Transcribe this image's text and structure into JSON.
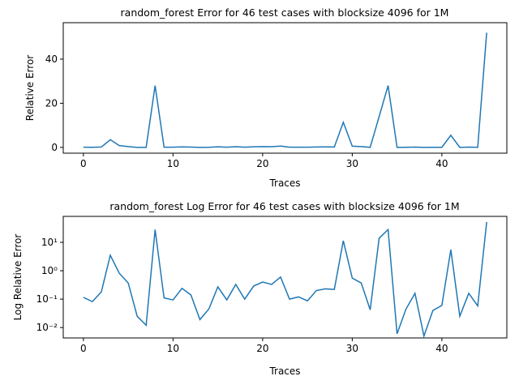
{
  "chart_data": [
    {
      "type": "line",
      "title": "random_forest Error for 46 test cases with blocksize 4096 for 1M",
      "x_label": "Traces",
      "y_label": "Relative Error",
      "x": [
        0,
        1,
        2,
        3,
        4,
        5,
        6,
        7,
        8,
        9,
        10,
        11,
        12,
        13,
        14,
        15,
        16,
        17,
        18,
        19,
        20,
        21,
        22,
        23,
        24,
        25,
        26,
        27,
        28,
        29,
        30,
        31,
        32,
        33,
        34,
        35,
        36,
        37,
        38,
        39,
        40,
        41,
        42,
        43,
        44,
        45
      ],
      "series": [
        {
          "color": "#1f77b4",
          "values": [
            0.115,
            0.082,
            0.18,
            3.5,
            0.82,
            0.37,
            0.025,
            0.012,
            28,
            0.11,
            0.094,
            0.24,
            0.14,
            0.019,
            0.045,
            0.27,
            0.094,
            0.33,
            0.1,
            0.29,
            0.4,
            0.33,
            0.6,
            0.1,
            0.12,
            0.087,
            0.2,
            0.23,
            0.22,
            11.4,
            0.55,
            0.37,
            0.042,
            14,
            28,
            0.006,
            0.045,
            0.16,
            0.005,
            0.04,
            0.06,
            5.5,
            0.025,
            0.16,
            0.058,
            52
          ]
        }
      ],
      "xlim": [
        -2.25,
        47.25
      ],
      "xticks": [
        0,
        10,
        20,
        30,
        40
      ],
      "ylim": [
        -2.6,
        56.5
      ],
      "yticks": [
        0,
        20,
        40
      ],
      "log_y": false
    },
    {
      "type": "line",
      "title": "random_forest Log Error for 46 test cases with blocksize 4096 for 1M",
      "x_label": "Traces",
      "y_label": "Log Relative Error",
      "x": [
        0,
        1,
        2,
        3,
        4,
        5,
        6,
        7,
        8,
        9,
        10,
        11,
        12,
        13,
        14,
        15,
        16,
        17,
        18,
        19,
        20,
        21,
        22,
        23,
        24,
        25,
        26,
        27,
        28,
        29,
        30,
        31,
        32,
        33,
        34,
        35,
        36,
        37,
        38,
        39,
        40,
        41,
        42,
        43,
        44,
        45
      ],
      "series": [
        {
          "color": "#1f77b4",
          "values": [
            0.115,
            0.082,
            0.18,
            3.5,
            0.82,
            0.37,
            0.025,
            0.012,
            28,
            0.11,
            0.094,
            0.24,
            0.14,
            0.019,
            0.045,
            0.27,
            0.094,
            0.33,
            0.1,
            0.29,
            0.4,
            0.33,
            0.6,
            0.1,
            0.12,
            0.087,
            0.2,
            0.23,
            0.22,
            11.4,
            0.55,
            0.37,
            0.042,
            14,
            28,
            0.006,
            0.045,
            0.16,
            0.005,
            0.04,
            0.06,
            5.5,
            0.025,
            0.16,
            0.058,
            52
          ]
        }
      ],
      "xlim": [
        -2.25,
        47.25
      ],
      "xticks": [
        0,
        10,
        20,
        30,
        40
      ],
      "ylim": [
        0.0043,
        82
      ],
      "yticks": [
        {
          "value": 0.01,
          "label": "10⁻²"
        },
        {
          "value": 0.1,
          "label": "10⁻¹"
        },
        {
          "value": 1,
          "label": "10⁰"
        },
        {
          "value": 10,
          "label": "10¹"
        }
      ],
      "log_y": true
    }
  ]
}
